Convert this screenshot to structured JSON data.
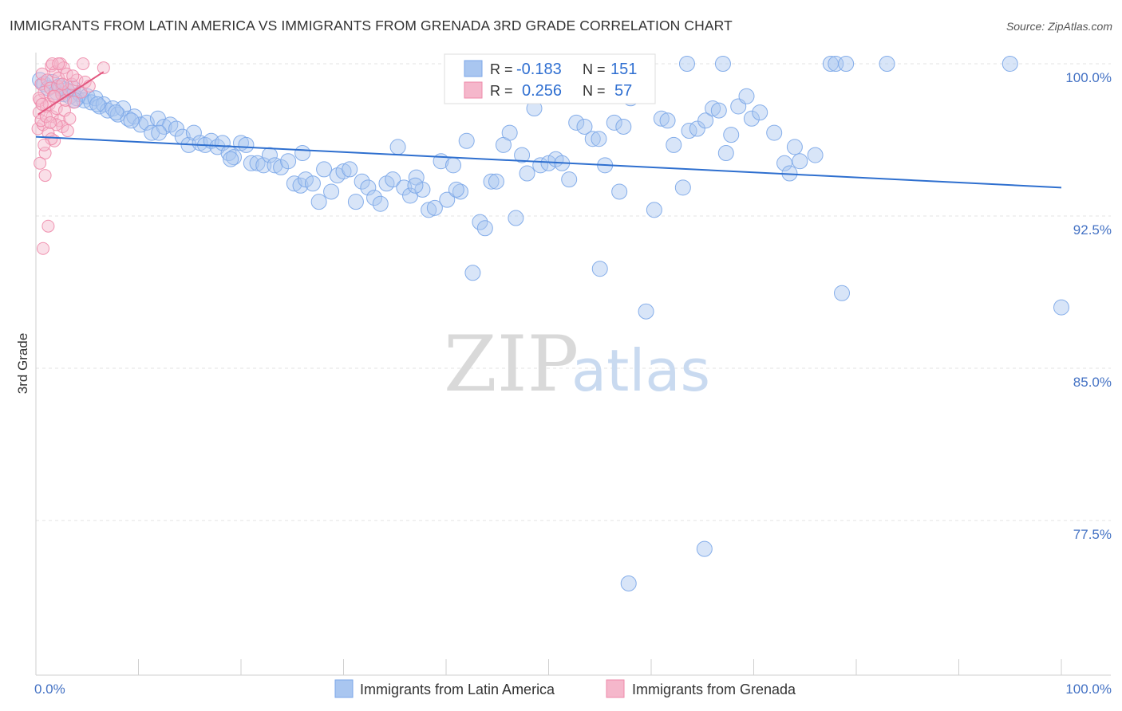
{
  "header": {
    "title": "IMMIGRANTS FROM LATIN AMERICA VS IMMIGRANTS FROM GRENADA 3RD GRADE CORRELATION CHART",
    "source": "Source: ZipAtlas.com"
  },
  "watermark": {
    "zip": "ZIP",
    "atlas": "atlas"
  },
  "chart_data": {
    "type": "scatter",
    "title": "IMMIGRANTS FROM LATIN AMERICA VS IMMIGRANTS FROM GRENADA 3RD GRADE CORRELATION CHART",
    "ylabel": "3rd Grade",
    "xlabel": "",
    "xlim": [
      0,
      100
    ],
    "ylim": [
      70,
      100.8
    ],
    "x_tick_labels": [
      "0.0%",
      "100.0%"
    ],
    "y_ticks": [
      100.0,
      92.5,
      85.0,
      77.5
    ],
    "y_tick_labels": [
      "100.0%",
      "92.5%",
      "85.0%",
      "77.5%"
    ],
    "grid": true,
    "legend_placement": "bottom",
    "stats": [
      {
        "r_label": "R =",
        "r_value": "-0.183",
        "n_label": "N =",
        "n_value": "151"
      },
      {
        "r_label": "R =",
        "r_value": "0.256",
        "n_label": "N =",
        "n_value": "57"
      }
    ],
    "series": [
      {
        "name": "Immigrants from Latin America",
        "color": "#7aa6e8",
        "fill": "#a9c6f0",
        "trend": {
          "x": [
            0,
            100
          ],
          "y": [
            96.4,
            93.9
          ]
        },
        "points": [
          [
            0.4,
            99.2
          ],
          [
            0.8,
            99.0
          ],
          [
            1.2,
            98.8
          ],
          [
            1.6,
            99.1
          ],
          [
            2.0,
            98.6
          ],
          [
            2.3,
            98.9
          ],
          [
            2.7,
            98.5
          ],
          [
            3.0,
            98.7
          ],
          [
            3.3,
            98.4
          ],
          [
            3.6,
            98.8
          ],
          [
            4.0,
            98.3
          ],
          [
            4.3,
            98.5
          ],
          [
            4.7,
            98.2
          ],
          [
            5.0,
            98.4
          ],
          [
            5.4,
            98.1
          ],
          [
            5.8,
            98.3
          ],
          [
            6.2,
            97.9
          ],
          [
            6.6,
            98.0
          ],
          [
            7.0,
            97.7
          ],
          [
            7.5,
            97.8
          ],
          [
            8.0,
            97.5
          ],
          [
            8.5,
            97.8
          ],
          [
            9.0,
            97.3
          ],
          [
            9.6,
            97.4
          ],
          [
            10.2,
            97.0
          ],
          [
            10.8,
            97.1
          ],
          [
            11.3,
            96.6
          ],
          [
            11.9,
            97.3
          ],
          [
            12.5,
            96.9
          ],
          [
            13.1,
            97.0
          ],
          [
            13.7,
            96.8
          ],
          [
            14.3,
            96.4
          ],
          [
            14.9,
            96.0
          ],
          [
            15.4,
            96.6
          ],
          [
            16.0,
            96.1
          ],
          [
            16.5,
            96.0
          ],
          [
            17.1,
            96.2
          ],
          [
            17.7,
            95.9
          ],
          [
            18.2,
            96.1
          ],
          [
            18.8,
            95.6
          ],
          [
            19.3,
            95.4
          ],
          [
            20.0,
            96.1
          ],
          [
            20.5,
            96.0
          ],
          [
            21.0,
            95.1
          ],
          [
            21.6,
            95.1
          ],
          [
            22.2,
            95.0
          ],
          [
            22.8,
            95.5
          ],
          [
            23.3,
            95.0
          ],
          [
            23.9,
            94.9
          ],
          [
            24.6,
            95.2
          ],
          [
            25.2,
            94.1
          ],
          [
            25.8,
            94.0
          ],
          [
            26.3,
            94.3
          ],
          [
            27.0,
            94.1
          ],
          [
            27.6,
            93.2
          ],
          [
            28.1,
            94.8
          ],
          [
            28.8,
            93.7
          ],
          [
            29.4,
            94.5
          ],
          [
            30.0,
            94.7
          ],
          [
            30.6,
            94.8
          ],
          [
            31.2,
            93.2
          ],
          [
            31.8,
            94.2
          ],
          [
            32.4,
            93.9
          ],
          [
            33.0,
            93.4
          ],
          [
            33.6,
            93.1
          ],
          [
            34.2,
            94.1
          ],
          [
            34.8,
            94.3
          ],
          [
            35.3,
            95.9
          ],
          [
            35.9,
            93.9
          ],
          [
            36.5,
            93.5
          ],
          [
            37.1,
            94.4
          ],
          [
            37.7,
            93.8
          ],
          [
            38.3,
            92.8
          ],
          [
            38.9,
            92.9
          ],
          [
            39.5,
            95.2
          ],
          [
            40.1,
            93.3
          ],
          [
            40.7,
            95.0
          ],
          [
            41.4,
            93.7
          ],
          [
            42.0,
            96.2
          ],
          [
            42.6,
            89.7
          ],
          [
            43.3,
            92.2
          ],
          [
            43.8,
            91.9
          ],
          [
            44.4,
            94.2
          ],
          [
            44.9,
            94.2
          ],
          [
            45.6,
            96.0
          ],
          [
            46.2,
            96.6
          ],
          [
            46.8,
            92.4
          ],
          [
            47.4,
            95.5
          ],
          [
            47.9,
            94.6
          ],
          [
            48.6,
            97.8
          ],
          [
            49.2,
            95.0
          ],
          [
            50.0,
            95.1
          ],
          [
            50.7,
            95.3
          ],
          [
            51.3,
            95.1
          ],
          [
            52.0,
            94.3
          ],
          [
            52.7,
            97.1
          ],
          [
            53.5,
            96.9
          ],
          [
            54.3,
            96.3
          ],
          [
            54.9,
            96.3
          ],
          [
            55.5,
            95.0
          ],
          [
            56.4,
            97.1
          ],
          [
            56.9,
            93.7
          ],
          [
            57.3,
            96.9
          ],
          [
            58.0,
            98.3
          ],
          [
            58.6,
            98.6
          ],
          [
            59.5,
            87.8
          ],
          [
            60.3,
            92.8
          ],
          [
            61.0,
            97.3
          ],
          [
            61.6,
            97.2
          ],
          [
            62.2,
            96.0
          ],
          [
            63.1,
            93.9
          ],
          [
            63.7,
            96.7
          ],
          [
            64.5,
            96.8
          ],
          [
            65.3,
            97.2
          ],
          [
            66.0,
            97.8
          ],
          [
            66.6,
            97.7
          ],
          [
            67.3,
            95.6
          ],
          [
            67.8,
            96.5
          ],
          [
            68.5,
            97.9
          ],
          [
            69.3,
            98.4
          ],
          [
            69.8,
            97.3
          ],
          [
            70.6,
            97.6
          ],
          [
            72.0,
            96.6
          ],
          [
            73.0,
            95.1
          ],
          [
            73.5,
            94.6
          ],
          [
            74.0,
            95.9
          ],
          [
            74.5,
            95.2
          ],
          [
            76.0,
            95.5
          ],
          [
            57.8,
            74.4
          ],
          [
            65.2,
            76.1
          ],
          [
            55.0,
            89.9
          ],
          [
            78.6,
            88.7
          ],
          [
            100.0,
            88.0
          ],
          [
            63.5,
            100.0
          ],
          [
            67.0,
            100.0
          ],
          [
            77.5,
            100.0
          ],
          [
            78.0,
            100.0
          ],
          [
            79.0,
            100.0
          ],
          [
            83.0,
            100.0
          ],
          [
            95.0,
            100.0
          ],
          [
            58.0,
            98.7
          ],
          [
            41.0,
            93.8
          ],
          [
            37.0,
            94.0
          ],
          [
            26.0,
            95.6
          ],
          [
            19.0,
            95.3
          ],
          [
            12.0,
            96.6
          ],
          [
            9.3,
            97.2
          ],
          [
            7.8,
            97.6
          ],
          [
            6.0,
            98.0
          ],
          [
            3.8,
            98.2
          ],
          [
            2.4,
            98.8
          ]
        ]
      },
      {
        "name": "Immigrants from Grenada",
        "color": "#ee8aaa",
        "fill": "#f5b7cb",
        "trend": {
          "x": [
            0.2,
            6.6
          ],
          "y": [
            97.5,
            99.6
          ]
        },
        "points": [
          [
            0.2,
            96.8
          ],
          [
            0.3,
            97.6
          ],
          [
            0.4,
            98.2
          ],
          [
            0.5,
            99.0
          ],
          [
            0.6,
            99.5
          ],
          [
            0.7,
            97.0
          ],
          [
            0.8,
            98.6
          ],
          [
            0.9,
            95.6
          ],
          [
            1.0,
            97.9
          ],
          [
            1.1,
            99.2
          ],
          [
            1.2,
            96.6
          ],
          [
            1.3,
            98.0
          ],
          [
            1.4,
            98.8
          ],
          [
            1.5,
            99.9
          ],
          [
            1.6,
            97.4
          ],
          [
            1.7,
            98.4
          ],
          [
            1.8,
            96.2
          ],
          [
            1.9,
            99.6
          ],
          [
            2.0,
            97.8
          ],
          [
            2.1,
            98.9
          ],
          [
            2.2,
            99.3
          ],
          [
            2.3,
            97.2
          ],
          [
            2.4,
            100.0
          ],
          [
            2.5,
            98.5
          ],
          [
            2.6,
            96.9
          ],
          [
            2.7,
            99.8
          ],
          [
            2.8,
            97.7
          ],
          [
            2.9,
            98.2
          ],
          [
            3.0,
            99.5
          ],
          [
            3.1,
            96.7
          ],
          [
            3.2,
            98.7
          ],
          [
            3.3,
            97.3
          ],
          [
            3.5,
            99.0
          ],
          [
            3.7,
            98.1
          ],
          [
            4.0,
            99.2
          ],
          [
            4.4,
            98.6
          ],
          [
            4.8,
            99.1
          ],
          [
            5.2,
            98.9
          ],
          [
            6.6,
            99.8
          ],
          [
            0.4,
            95.1
          ],
          [
            0.9,
            94.5
          ],
          [
            1.2,
            92.0
          ],
          [
            0.7,
            90.9
          ],
          [
            1.6,
            100.0
          ],
          [
            2.2,
            100.0
          ],
          [
            4.6,
            100.0
          ],
          [
            0.5,
            97.2
          ],
          [
            1.0,
            97.4
          ],
          [
            1.5,
            96.3
          ],
          [
            2.0,
            97.0
          ],
          [
            0.3,
            98.3
          ],
          [
            0.6,
            98.0
          ],
          [
            1.8,
            98.4
          ],
          [
            2.6,
            99.0
          ],
          [
            3.6,
            99.4
          ],
          [
            0.8,
            96.0
          ],
          [
            1.4,
            97.1
          ]
        ]
      }
    ]
  },
  "legend": {
    "items": [
      {
        "label": "Immigrants from Latin America"
      },
      {
        "label": "Immigrants from Grenada"
      }
    ]
  }
}
